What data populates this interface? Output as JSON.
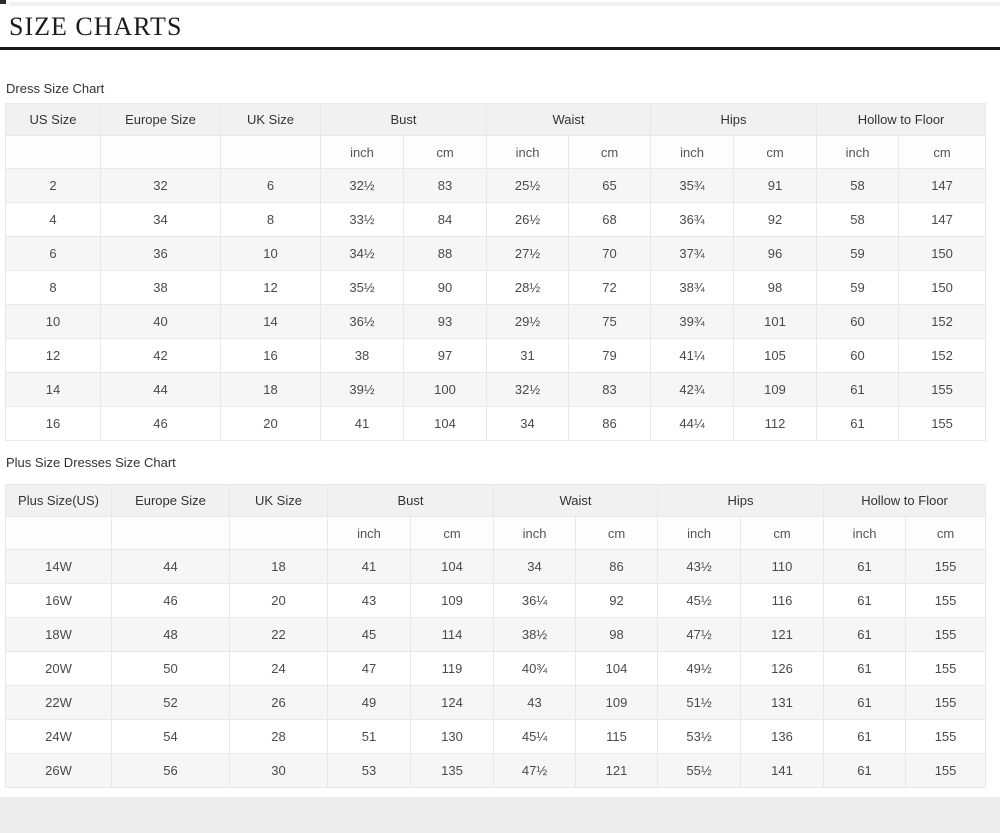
{
  "page_title": "SIZE CHARTS",
  "sections": [
    {
      "label": "Dress Size Chart"
    },
    {
      "label": "Plus Size Dresses Size Chart"
    }
  ],
  "tables": {
    "dress": {
      "group_headers": [
        {
          "label": "US Size",
          "span": 1
        },
        {
          "label": "Europe Size",
          "span": 1
        },
        {
          "label": "UK Size",
          "span": 1
        },
        {
          "label": "Bust",
          "span": 2
        },
        {
          "label": "Waist",
          "span": 2
        },
        {
          "label": "Hips",
          "span": 2
        },
        {
          "label": "Hollow to Floor",
          "span": 2
        }
      ],
      "sub_headers": [
        "",
        "",
        "",
        "inch",
        "cm",
        "inch",
        "cm",
        "inch",
        "cm",
        "inch",
        "cm"
      ],
      "rows": [
        [
          "2",
          "32",
          "6",
          "32½",
          "83",
          "25½",
          "65",
          "35¾",
          "91",
          "58",
          "147"
        ],
        [
          "4",
          "34",
          "8",
          "33½",
          "84",
          "26½",
          "68",
          "36¾",
          "92",
          "58",
          "147"
        ],
        [
          "6",
          "36",
          "10",
          "34½",
          "88",
          "27½",
          "70",
          "37¾",
          "96",
          "59",
          "150"
        ],
        [
          "8",
          "38",
          "12",
          "35½",
          "90",
          "28½",
          "72",
          "38¾",
          "98",
          "59",
          "150"
        ],
        [
          "10",
          "40",
          "14",
          "36½",
          "93",
          "29½",
          "75",
          "39¾",
          "101",
          "60",
          "152"
        ],
        [
          "12",
          "42",
          "16",
          "38",
          "97",
          "31",
          "79",
          "41¼",
          "105",
          "60",
          "152"
        ],
        [
          "14",
          "44",
          "18",
          "39½",
          "100",
          "32½",
          "83",
          "42¾",
          "109",
          "61",
          "155"
        ],
        [
          "16",
          "46",
          "20",
          "41",
          "104",
          "34",
          "86",
          "44¼",
          "112",
          "61",
          "155"
        ]
      ]
    },
    "plus": {
      "group_headers": [
        {
          "label": "Plus Size(US)",
          "span": 1
        },
        {
          "label": "Europe Size",
          "span": 1
        },
        {
          "label": "UK Size",
          "span": 1
        },
        {
          "label": "Bust",
          "span": 2
        },
        {
          "label": "Waist",
          "span": 2
        },
        {
          "label": "Hips",
          "span": 2
        },
        {
          "label": "Hollow to Floor",
          "span": 2
        }
      ],
      "sub_headers": [
        "",
        "",
        "",
        "inch",
        "cm",
        "inch",
        "cm",
        "inch",
        "cm",
        "inch",
        "cm"
      ],
      "rows": [
        [
          "14W",
          "44",
          "18",
          "41",
          "104",
          "34",
          "86",
          "43½",
          "110",
          "61",
          "155"
        ],
        [
          "16W",
          "46",
          "20",
          "43",
          "109",
          "36¼",
          "92",
          "45½",
          "116",
          "61",
          "155"
        ],
        [
          "18W",
          "48",
          "22",
          "45",
          "114",
          "38½",
          "98",
          "47½",
          "121",
          "61",
          "155"
        ],
        [
          "20W",
          "50",
          "24",
          "47",
          "119",
          "40¾",
          "104",
          "49½",
          "126",
          "61",
          "155"
        ],
        [
          "22W",
          "52",
          "26",
          "49",
          "124",
          "43",
          "109",
          "51½",
          "131",
          "61",
          "155"
        ],
        [
          "24W",
          "54",
          "28",
          "51",
          "130",
          "45¼",
          "115",
          "53½",
          "136",
          "61",
          "155"
        ],
        [
          "26W",
          "56",
          "30",
          "53",
          "135",
          "47½",
          "121",
          "55½",
          "141",
          "61",
          "155"
        ]
      ]
    }
  },
  "colors": {
    "title_underline": "#191919",
    "header_bg": "#f1f1f1",
    "stripe_bg": "#f6f6f6",
    "border": "#e8e8e8",
    "footer_bg": "#ededed"
  }
}
